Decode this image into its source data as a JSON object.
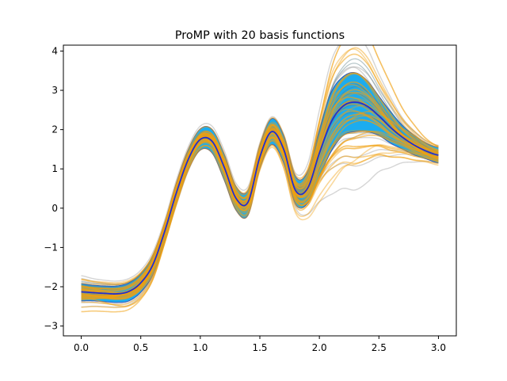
{
  "chart_data": {
    "type": "line",
    "title": "ProMP with 20 basis functions",
    "xlabel": "",
    "ylabel": "",
    "xlim": [
      -0.15,
      3.15
    ],
    "ylim": [
      -3.25,
      4.15
    ],
    "x_ticks": [
      0.0,
      0.5,
      1.0,
      1.5,
      2.0,
      2.5,
      3.0
    ],
    "x_tick_labels": [
      "0.0",
      "0.5",
      "1.0",
      "1.5",
      "2.0",
      "2.5",
      "3.0"
    ],
    "y_ticks": [
      -3,
      -2,
      -1,
      0,
      1,
      2,
      3,
      4
    ],
    "y_tick_labels": [
      "−3",
      "−2",
      "−1",
      "0",
      "1",
      "2",
      "3",
      "4"
    ],
    "grid": false,
    "legend": "none",
    "colors": {
      "mean": "#1f2fd0",
      "band_fill": "#10a8ee",
      "band_edge": "#2f55b8",
      "demonstrations": "#888888",
      "samples": "#f0a010"
    },
    "x": [
      0.0,
      0.1,
      0.2,
      0.3,
      0.4,
      0.5,
      0.6,
      0.7,
      0.8,
      0.9,
      1.0,
      1.1,
      1.2,
      1.3,
      1.4,
      1.5,
      1.6,
      1.7,
      1.8,
      1.9,
      2.0,
      2.1,
      2.2,
      2.3,
      2.4,
      2.5,
      2.6,
      2.7,
      2.8,
      2.9,
      3.0
    ],
    "series": [
      {
        "role": "mean",
        "values": [
          -2.13,
          -2.15,
          -2.17,
          -2.18,
          -2.12,
          -1.9,
          -1.45,
          -0.6,
          0.4,
          1.25,
          1.75,
          1.7,
          1.05,
          0.25,
          0.15,
          1.3,
          1.95,
          1.5,
          0.45,
          0.5,
          1.4,
          2.2,
          2.6,
          2.7,
          2.6,
          2.35,
          2.05,
          1.8,
          1.6,
          1.45,
          1.35
        ]
      },
      {
        "role": "band-upper",
        "values": [
          -1.92,
          -1.96,
          -1.98,
          -1.98,
          -1.9,
          -1.66,
          -1.2,
          -0.38,
          0.65,
          1.5,
          2.02,
          2.0,
          1.38,
          0.55,
          0.45,
          1.6,
          2.28,
          1.85,
          0.8,
          0.92,
          2.0,
          2.95,
          3.35,
          3.45,
          3.25,
          2.85,
          2.45,
          2.1,
          1.85,
          1.65,
          1.55
        ]
      },
      {
        "role": "band-lower",
        "values": [
          -2.36,
          -2.36,
          -2.38,
          -2.4,
          -2.36,
          -2.14,
          -1.7,
          -0.85,
          0.12,
          0.98,
          1.48,
          1.4,
          0.72,
          -0.05,
          -0.18,
          1.0,
          1.62,
          1.15,
          0.1,
          0.12,
          0.8,
          1.45,
          1.85,
          1.95,
          1.95,
          1.85,
          1.65,
          1.5,
          1.35,
          1.25,
          1.15
        ]
      }
    ]
  }
}
